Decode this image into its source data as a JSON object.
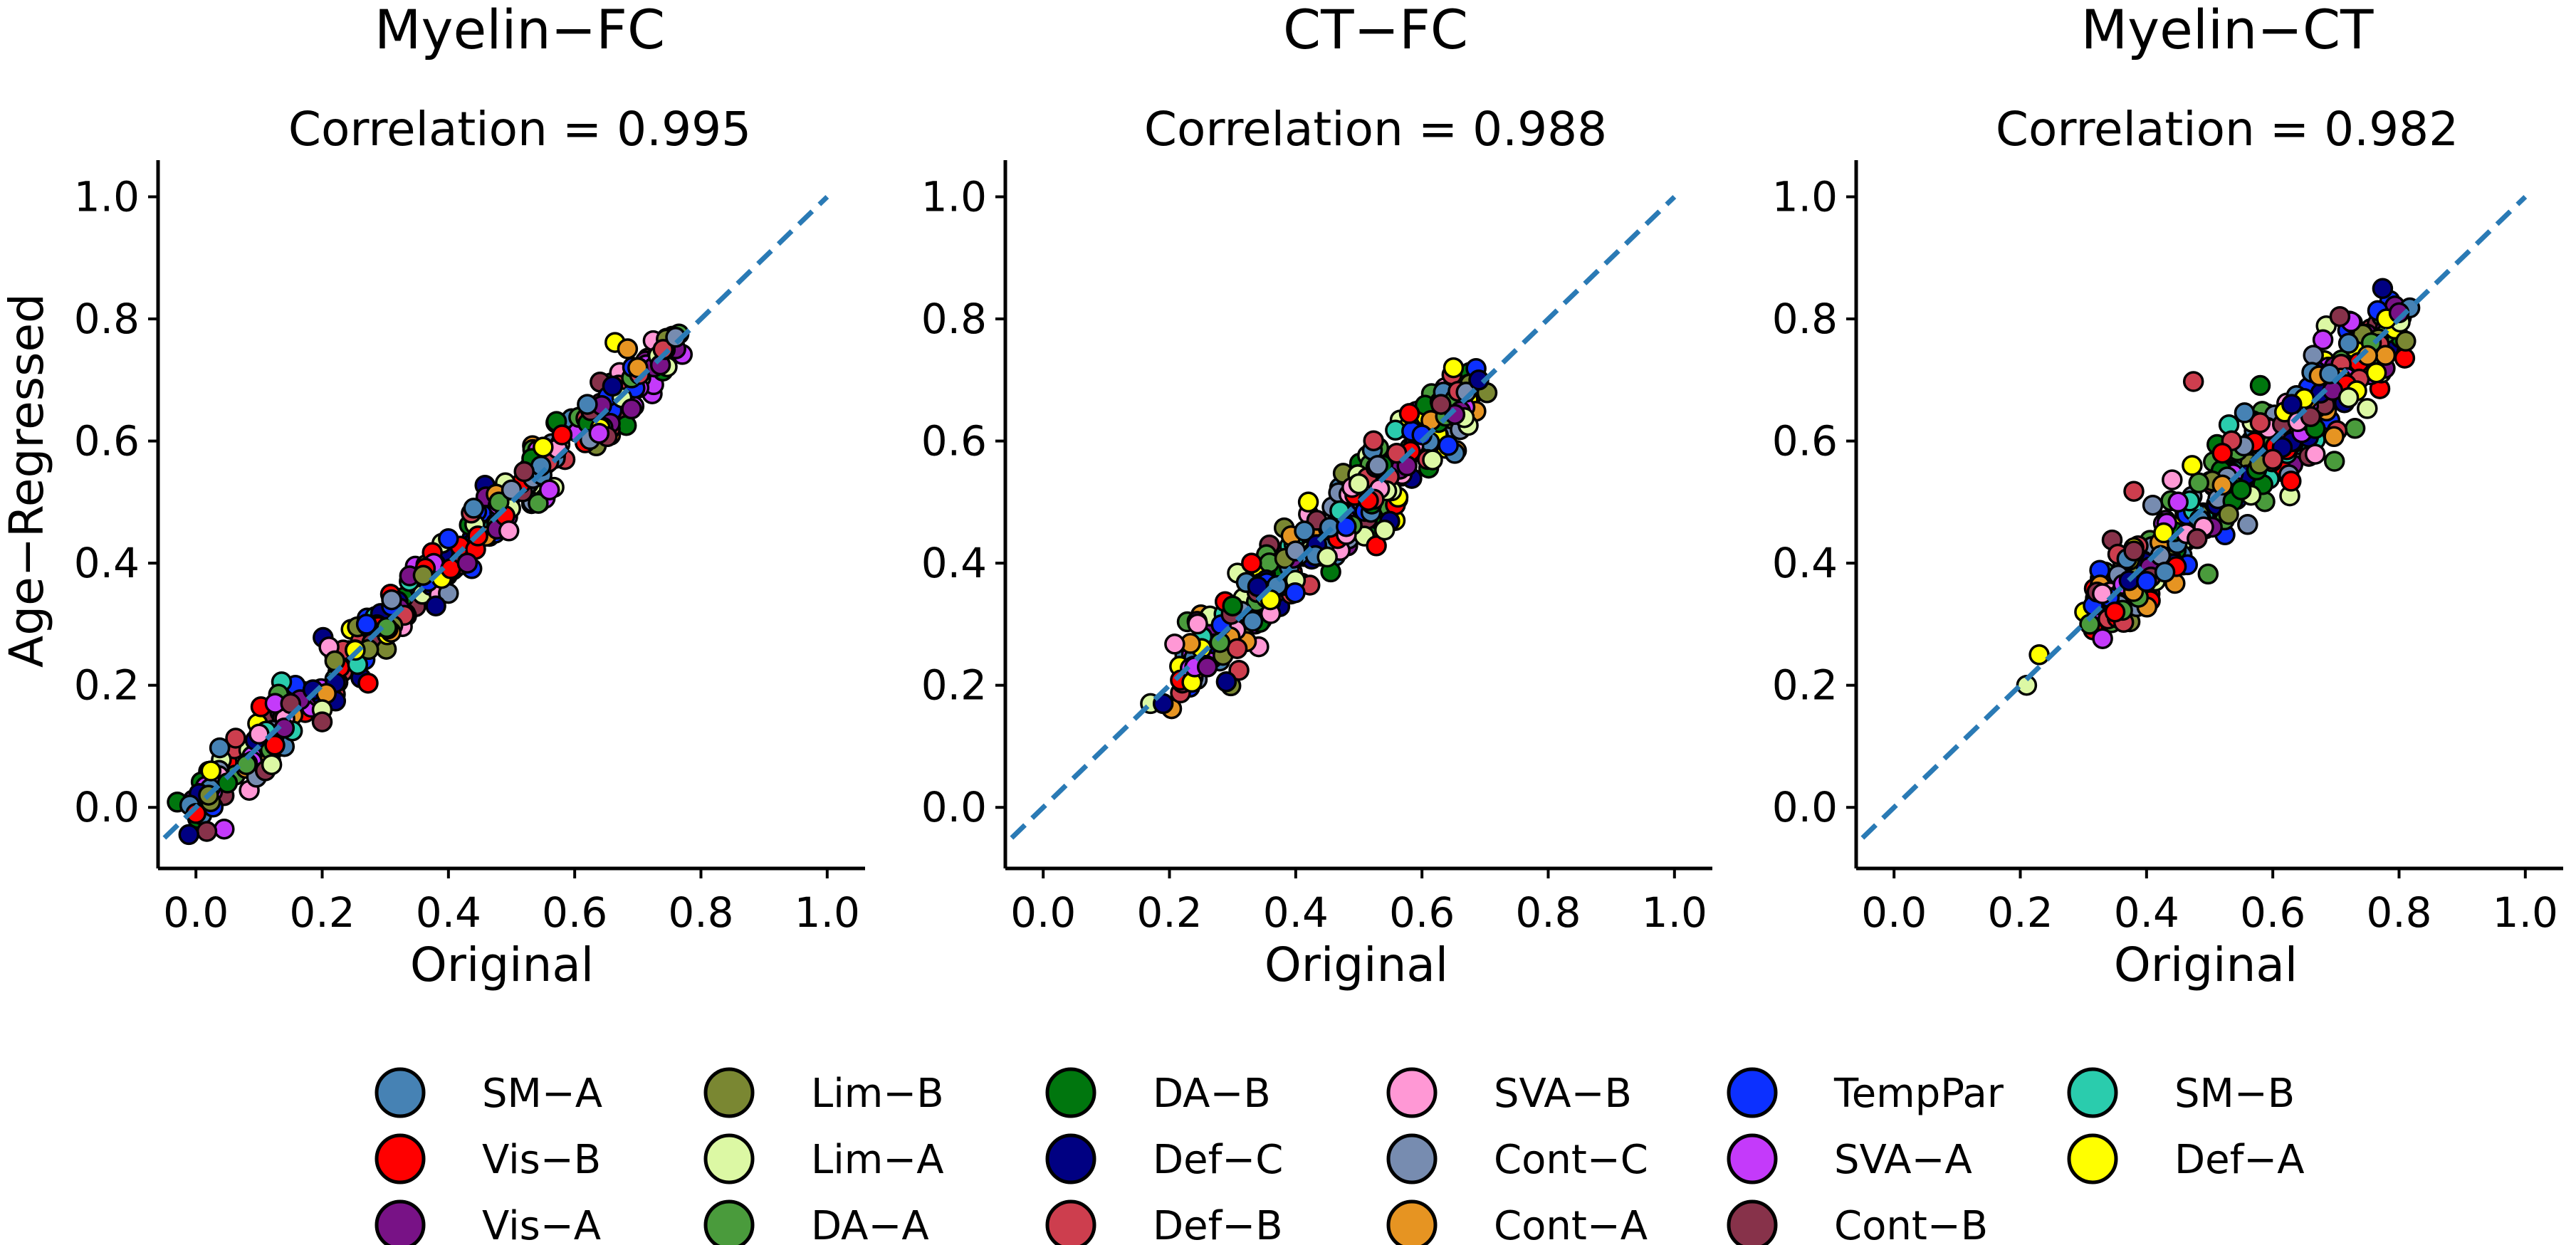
{
  "chart_data": [
    {
      "type": "scatter",
      "title": "Myelin−FC",
      "subtitle": "Correlation = 0.995",
      "xlabel": "Original",
      "ylabel": "Age−Regressed",
      "xlim": [
        -0.06,
        1.06
      ],
      "ylim": [
        -0.1,
        1.06
      ],
      "xticks": [
        "0.0",
        "0.2",
        "0.4",
        "0.6",
        "0.8",
        "1.0"
      ],
      "yticks": [
        "0.0",
        "0.2",
        "0.4",
        "0.6",
        "0.8",
        "1.0"
      ],
      "identity_line": {
        "from": [
          -0.05,
          -0.05
        ],
        "to": [
          1.0,
          1.0
        ],
        "style": "dashed",
        "color": "#2a7ab5"
      },
      "range": [
        0.0,
        0.77
      ],
      "spread": 0.025,
      "points": [
        [
          0.0,
          -0.01
        ],
        [
          0.02,
          0.02
        ],
        [
          0.05,
          0.04
        ],
        [
          0.08,
          0.07
        ],
        [
          0.1,
          0.12
        ],
        [
          0.11,
          0.06
        ],
        [
          0.12,
          0.07
        ],
        [
          0.14,
          0.13
        ],
        [
          0.15,
          0.17
        ],
        [
          0.2,
          0.16
        ],
        [
          0.2,
          0.14
        ],
        [
          0.22,
          0.24
        ],
        [
          0.27,
          0.3
        ],
        [
          0.31,
          0.34
        ],
        [
          0.36,
          0.38
        ],
        [
          0.4,
          0.44
        ],
        [
          0.44,
          0.49
        ],
        [
          0.48,
          0.5
        ],
        [
          0.5,
          0.52
        ],
        [
          0.52,
          0.55
        ],
        [
          0.55,
          0.59
        ],
        [
          0.58,
          0.61
        ],
        [
          0.62,
          0.66
        ],
        [
          0.66,
          0.69
        ],
        [
          0.7,
          0.72
        ],
        [
          0.74,
          0.75
        ],
        [
          0.76,
          0.77
        ],
        [
          0.38,
          0.33
        ],
        [
          0.43,
          0.4
        ],
        [
          0.56,
          0.52
        ]
      ]
    },
    {
      "type": "scatter",
      "title": "CT−FC",
      "subtitle": "Correlation = 0.988",
      "xlabel": "Original",
      "ylabel": "",
      "xlim": [
        -0.06,
        1.06
      ],
      "ylim": [
        -0.1,
        1.06
      ],
      "xticks": [
        "0.0",
        "0.2",
        "0.4",
        "0.6",
        "0.8",
        "1.0"
      ],
      "yticks": [
        "0.0",
        "0.2",
        "0.4",
        "0.6",
        "0.8",
        "1.0"
      ],
      "identity_line": {
        "from": [
          -0.05,
          -0.05
        ],
        "to": [
          1.0,
          1.0
        ],
        "style": "dashed",
        "color": "#2a7ab5"
      },
      "range": [
        0.22,
        0.69
      ],
      "spread": 0.03,
      "points": [
        [
          0.17,
          0.17
        ],
        [
          0.19,
          0.17
        ],
        [
          0.24,
          0.23
        ],
        [
          0.26,
          0.23
        ],
        [
          0.28,
          0.27
        ],
        [
          0.3,
          0.33
        ],
        [
          0.33,
          0.4
        ],
        [
          0.36,
          0.34
        ],
        [
          0.4,
          0.42
        ],
        [
          0.42,
          0.5
        ],
        [
          0.45,
          0.41
        ],
        [
          0.48,
          0.46
        ],
        [
          0.5,
          0.53
        ],
        [
          0.53,
          0.56
        ],
        [
          0.56,
          0.58
        ],
        [
          0.6,
          0.61
        ],
        [
          0.63,
          0.66
        ],
        [
          0.65,
          0.72
        ],
        [
          0.67,
          0.68
        ],
        [
          0.69,
          0.7
        ]
      ]
    },
    {
      "type": "scatter",
      "title": "Myelin−CT",
      "subtitle": "Correlation = 0.982",
      "xlabel": "Original",
      "ylabel": "",
      "xlim": [
        -0.06,
        1.06
      ],
      "ylim": [
        -0.1,
        1.06
      ],
      "xticks": [
        "0.0",
        "0.2",
        "0.4",
        "0.6",
        "0.8",
        "1.0"
      ],
      "yticks": [
        "0.0",
        "0.2",
        "0.4",
        "0.6",
        "0.8",
        "1.0"
      ],
      "identity_line": {
        "from": [
          -0.05,
          -0.05
        ],
        "to": [
          1.0,
          1.0
        ],
        "style": "dashed",
        "color": "#2a7ab5"
      },
      "range": [
        0.31,
        0.81
      ],
      "spread": 0.04,
      "points": [
        [
          0.21,
          0.2
        ],
        [
          0.23,
          0.25
        ],
        [
          0.31,
          0.3
        ],
        [
          0.33,
          0.35
        ],
        [
          0.35,
          0.32
        ],
        [
          0.38,
          0.42
        ],
        [
          0.4,
          0.37
        ],
        [
          0.45,
          0.5
        ],
        [
          0.48,
          0.44
        ],
        [
          0.52,
          0.58
        ],
        [
          0.55,
          0.52
        ],
        [
          0.58,
          0.63
        ],
        [
          0.6,
          0.57
        ],
        [
          0.63,
          0.66
        ],
        [
          0.66,
          0.64
        ],
        [
          0.69,
          0.71
        ],
        [
          0.72,
          0.76
        ],
        [
          0.75,
          0.74
        ],
        [
          0.78,
          0.8
        ],
        [
          0.8,
          0.81
        ]
      ]
    }
  ],
  "legend": {
    "placement": "bottom",
    "items": [
      {
        "label": "SM−A",
        "color": "#4682b4"
      },
      {
        "label": "Vis−B",
        "color": "#ff0000"
      },
      {
        "label": "Vis−A",
        "color": "#781286"
      },
      {
        "label": "Lim−B",
        "color": "#7a8732"
      },
      {
        "label": "Lim−A",
        "color": "#dcf8a4"
      },
      {
        "label": "DA−A",
        "color": "#4a9b3c"
      },
      {
        "label": "DA−B",
        "color": "#00760e"
      },
      {
        "label": "Def−C",
        "color": "#000082"
      },
      {
        "label": "Def−B",
        "color": "#cd3e4e"
      },
      {
        "label": "SVA−B",
        "color": "#ff98d5"
      },
      {
        "label": "Cont−C",
        "color": "#778cb0"
      },
      {
        "label": "Cont−A",
        "color": "#e69422"
      },
      {
        "label": "TempPar",
        "color": "#0c30ff"
      },
      {
        "label": "SVA−A",
        "color": "#c43afa"
      },
      {
        "label": "Cont−B",
        "color": "#87324a"
      },
      {
        "label": "SM−B",
        "color": "#2accad"
      },
      {
        "label": "Def−A",
        "color": "#ffff00"
      }
    ]
  }
}
